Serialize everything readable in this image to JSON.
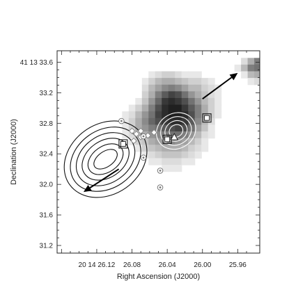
{
  "chart_data": {
    "type": "heatmap",
    "xlabel": "Right Ascension (J2000)",
    "ylabel": "Declination (J2000)",
    "x_ticks": [
      {
        "value": 26.12,
        "label": "20 14 26.12"
      },
      {
        "value": 26.08,
        "label": "26.08"
      },
      {
        "value": 26.04,
        "label": "26.04"
      },
      {
        "value": 26.0,
        "label": "26.00"
      },
      {
        "value": 25.96,
        "label": "25.96"
      }
    ],
    "y_ticks": [
      {
        "value": 33.6,
        "label": "41 13 33.6"
      },
      {
        "value": 33.2,
        "label": "33.2"
      },
      {
        "value": 32.8,
        "label": "32.8"
      },
      {
        "value": 32.4,
        "label": "32.4"
      },
      {
        "value": 32.0,
        "label": "32.0"
      },
      {
        "value": 31.6,
        "label": "31.6"
      },
      {
        "value": 31.2,
        "label": "31.2"
      }
    ],
    "xlim": [
      26.165,
      25.935
    ],
    "ylim": [
      31.1,
      33.75
    ],
    "x_inverted": true,
    "grayscale_image": {
      "x_start": 26.14,
      "dx": -0.0075,
      "y_start": 33.7,
      "dy": -0.0875,
      "values": [
        [
          0,
          0,
          0,
          0,
          0,
          0,
          0,
          0,
          0,
          0,
          0,
          0,
          0,
          0,
          0,
          0,
          0,
          0,
          0,
          0,
          0,
          0,
          0,
          0,
          0,
          0,
          0,
          0,
          0,
          0,
          0
        ],
        [
          0,
          0,
          0,
          0,
          0,
          0,
          0,
          0,
          0,
          0,
          0,
          0,
          0,
          0,
          0,
          0,
          0,
          0,
          0,
          0,
          0,
          0,
          0,
          0,
          0,
          0.15,
          0.35,
          0.55,
          0.5,
          0.3,
          0
        ],
        [
          0,
          0,
          0,
          0,
          0,
          0,
          0,
          0,
          0,
          0,
          0,
          0,
          0,
          0,
          0,
          0,
          0,
          0,
          0,
          0,
          0,
          0,
          0,
          0,
          0.1,
          0.3,
          0.55,
          0.6,
          0.45,
          0.25,
          0.1
        ],
        [
          0,
          0,
          0,
          0,
          0,
          0,
          0,
          0,
          0,
          0,
          0,
          0.1,
          0.15,
          0.2,
          0.2,
          0.15,
          0.1,
          0.1,
          0.1,
          0,
          0,
          0,
          0,
          0,
          0,
          0.1,
          0.3,
          0.35,
          0.25,
          0.15,
          0
        ],
        [
          0,
          0,
          0,
          0,
          0,
          0,
          0,
          0,
          0,
          0,
          0.1,
          0.2,
          0.3,
          0.35,
          0.35,
          0.3,
          0.25,
          0.2,
          0.2,
          0.15,
          0.1,
          0,
          0,
          0,
          0,
          0,
          0.1,
          0.15,
          0.1,
          0,
          0
        ],
        [
          0,
          0,
          0,
          0,
          0,
          0,
          0,
          0,
          0,
          0,
          0.15,
          0.3,
          0.4,
          0.5,
          0.55,
          0.5,
          0.4,
          0.3,
          0.3,
          0.2,
          0.15,
          0.1,
          0,
          0,
          0,
          0,
          0,
          0,
          0,
          0,
          0
        ],
        [
          0,
          0,
          0,
          0,
          0,
          0,
          0,
          0,
          0,
          0,
          0.2,
          0.35,
          0.55,
          0.7,
          0.8,
          0.75,
          0.6,
          0.45,
          0.35,
          0.25,
          0.15,
          0.1,
          0,
          0,
          0,
          0,
          0,
          0,
          0,
          0,
          0
        ],
        [
          0,
          0,
          0,
          0,
          0,
          0,
          0,
          0,
          0,
          0.1,
          0.25,
          0.45,
          0.65,
          0.85,
          0.9,
          0.85,
          0.75,
          0.6,
          0.45,
          0.3,
          0.2,
          0.1,
          0,
          0,
          0,
          0,
          0,
          0,
          0,
          0,
          0
        ],
        [
          0,
          0,
          0,
          0,
          0,
          0,
          0,
          0,
          0.1,
          0.2,
          0.35,
          0.55,
          0.75,
          0.9,
          0.95,
          0.95,
          0.85,
          0.7,
          0.55,
          0.35,
          0.2,
          0.1,
          0,
          0,
          0,
          0,
          0,
          0,
          0,
          0,
          0
        ],
        [
          0,
          0,
          0,
          0,
          0,
          0,
          0,
          0.1,
          0.15,
          0.3,
          0.45,
          0.6,
          0.8,
          0.9,
          0.95,
          0.95,
          0.9,
          0.75,
          0.55,
          0.35,
          0.2,
          0.1,
          0,
          0,
          0,
          0,
          0,
          0,
          0,
          0,
          0
        ],
        [
          0,
          0,
          0,
          0,
          0,
          0,
          0,
          0.1,
          0.2,
          0.35,
          0.5,
          0.65,
          0.75,
          0.85,
          0.9,
          0.9,
          0.85,
          0.7,
          0.5,
          0.3,
          0.15,
          0,
          0,
          0,
          0,
          0,
          0,
          0,
          0,
          0,
          0
        ],
        [
          0,
          0,
          0,
          0,
          0,
          0,
          0,
          0.1,
          0.2,
          0.35,
          0.45,
          0.55,
          0.6,
          0.7,
          0.75,
          0.8,
          0.75,
          0.6,
          0.4,
          0.25,
          0.1,
          0,
          0,
          0,
          0,
          0,
          0,
          0,
          0,
          0,
          0
        ],
        [
          0,
          0,
          0,
          0,
          0,
          0,
          0,
          0.1,
          0.15,
          0.25,
          0.35,
          0.45,
          0.5,
          0.55,
          0.6,
          0.6,
          0.55,
          0.45,
          0.3,
          0.15,
          0.1,
          0,
          0,
          0,
          0,
          0,
          0,
          0,
          0,
          0,
          0
        ],
        [
          0,
          0,
          0,
          0,
          0,
          0,
          0,
          0,
          0.1,
          0.2,
          0.25,
          0.35,
          0.4,
          0.45,
          0.5,
          0.45,
          0.4,
          0.3,
          0.2,
          0.1,
          0,
          0,
          0,
          0,
          0,
          0,
          0,
          0,
          0,
          0,
          0
        ],
        [
          0,
          0,
          0,
          0,
          0,
          0,
          0,
          0,
          0,
          0.1,
          0.2,
          0.25,
          0.3,
          0.35,
          0.35,
          0.35,
          0.3,
          0.2,
          0.15,
          0.1,
          0,
          0,
          0,
          0,
          0,
          0,
          0,
          0,
          0,
          0,
          0
        ],
        [
          0,
          0,
          0,
          0,
          0,
          0,
          0,
          0,
          0,
          0,
          0.1,
          0.15,
          0.2,
          0.25,
          0.25,
          0.25,
          0.2,
          0.15,
          0.1,
          0,
          0,
          0,
          0,
          0,
          0,
          0,
          0,
          0,
          0,
          0,
          0
        ],
        [
          0,
          0,
          0,
          0,
          0,
          0,
          0,
          0,
          0,
          0,
          0,
          0.1,
          0.1,
          0.15,
          0.15,
          0.15,
          0.1,
          0.1,
          0,
          0,
          0,
          0,
          0,
          0,
          0,
          0,
          0,
          0,
          0,
          0,
          0
        ],
        [
          0,
          0,
          0,
          0,
          0,
          0,
          0,
          0,
          0,
          0,
          0,
          0,
          0,
          0.1,
          0.1,
          0.1,
          0,
          0,
          0,
          0,
          0,
          0,
          0,
          0,
          0,
          0,
          0,
          0,
          0,
          0,
          0
        ],
        [
          0,
          0,
          0,
          0,
          0,
          0,
          0,
          0,
          0,
          0,
          0,
          0,
          0,
          0,
          0,
          0,
          0,
          0,
          0,
          0,
          0,
          0,
          0,
          0,
          0,
          0,
          0,
          0,
          0,
          0,
          0
        ]
      ]
    },
    "contours": [
      {
        "color": "black",
        "center": [
          26.11,
          32.33
        ],
        "ra_halfwidth": [
          0.015,
          0.022,
          0.029,
          0.036,
          0.043,
          0.05
        ],
        "dec_halfwidth": [
          0.1,
          0.17,
          0.24,
          0.31,
          0.38,
          0.46
        ],
        "tilt_deg": -35
      },
      {
        "color": "white",
        "center": [
          26.03,
          32.7
        ],
        "ra_halfwidth": [
          0.008,
          0.013,
          0.018,
          0.023
        ],
        "dec_halfwidth": [
          0.08,
          0.13,
          0.18,
          0.23
        ],
        "tilt_deg": -30
      }
    ],
    "markers": {
      "squares": [
        [
          26.09,
          32.53
        ],
        [
          26.04,
          32.59
        ],
        [
          25.995,
          32.87
        ]
      ],
      "diamonds": [
        [
          26.08,
          32.7
        ],
        [
          26.075,
          32.66
        ],
        [
          26.07,
          32.7
        ],
        [
          26.07,
          32.62
        ],
        [
          26.078,
          32.57
        ],
        [
          26.062,
          32.64
        ],
        [
          26.055,
          32.68
        ]
      ],
      "circles": [
        [
          26.092,
          32.83
        ],
        [
          26.067,
          32.63
        ],
        [
          26.067,
          32.35
        ],
        [
          26.048,
          32.18
        ],
        [
          26.048,
          31.96
        ]
      ],
      "triangle": [
        26.032,
        32.62
      ]
    },
    "arrows": [
      {
        "from": [
          26.0,
          33.12
        ],
        "to": [
          25.96,
          33.46
        ]
      },
      {
        "from": [
          26.095,
          32.2
        ],
        "to": [
          26.135,
          31.9
        ]
      }
    ]
  }
}
